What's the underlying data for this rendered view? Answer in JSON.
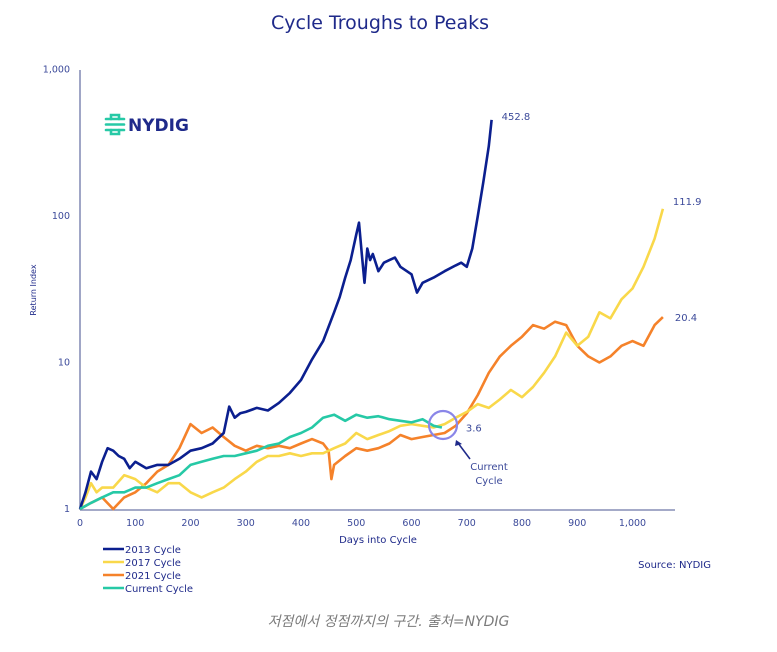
{
  "chart_data": {
    "type": "line",
    "title": "Cycle Troughs to Peaks",
    "xlabel": "Days into Cycle",
    "ylabel": "Return Index",
    "yscale": "log",
    "xlim": [
      0,
      1060
    ],
    "ylim": [
      1,
      1000
    ],
    "x_ticks": [
      0,
      100,
      200,
      300,
      400,
      500,
      600,
      700,
      800,
      900,
      1000
    ],
    "x_tick_labels": [
      "0",
      "100",
      "200",
      "300",
      "400",
      "500",
      "600",
      "700",
      "800",
      "900",
      "1,000"
    ],
    "y_ticks": [
      1,
      10,
      100,
      1000
    ],
    "y_tick_labels": [
      "1",
      "10",
      "100",
      "1,000"
    ],
    "legend_position": "bottom-left",
    "series": [
      {
        "name": "2013 Cycle",
        "color": "#0b1f8f",
        "end_label": "452.8",
        "x": [
          0,
          10,
          20,
          30,
          40,
          50,
          60,
          70,
          80,
          90,
          100,
          120,
          140,
          160,
          180,
          200,
          220,
          240,
          260,
          270,
          280,
          290,
          300,
          320,
          340,
          360,
          380,
          400,
          420,
          440,
          460,
          470,
          480,
          490,
          500,
          505,
          510,
          515,
          520,
          525,
          530,
          540,
          550,
          560,
          570,
          580,
          600,
          610,
          620,
          640,
          660,
          680,
          690,
          700,
          710,
          720,
          730,
          740,
          745
        ],
        "values": [
          1,
          1.3,
          1.8,
          1.6,
          2.1,
          2.6,
          2.5,
          2.3,
          2.2,
          1.9,
          2.1,
          1.9,
          2.0,
          2.0,
          2.2,
          2.5,
          2.6,
          2.8,
          3.3,
          5.0,
          4.2,
          4.5,
          4.6,
          4.9,
          4.7,
          5.3,
          6.2,
          7.6,
          10.5,
          14,
          22,
          28,
          38,
          50,
          75,
          90,
          55,
          35,
          60,
          50,
          55,
          42,
          48,
          50,
          52,
          45,
          40,
          30,
          35,
          38,
          42,
          46,
          48,
          45,
          60,
          100,
          170,
          300,
          452.8
        ]
      },
      {
        "name": "2017 Cycle",
        "color": "#f9d84a",
        "end_label": "111.9",
        "x": [
          0,
          10,
          20,
          30,
          40,
          60,
          80,
          100,
          120,
          140,
          160,
          180,
          200,
          220,
          240,
          260,
          280,
          300,
          320,
          340,
          360,
          380,
          400,
          420,
          440,
          460,
          480,
          500,
          520,
          540,
          560,
          580,
          600,
          620,
          640,
          660,
          680,
          700,
          720,
          740,
          760,
          780,
          800,
          820,
          840,
          860,
          880,
          900,
          920,
          940,
          960,
          980,
          1000,
          1020,
          1040,
          1055
        ],
        "values": [
          1,
          1.2,
          1.5,
          1.3,
          1.4,
          1.4,
          1.7,
          1.6,
          1.4,
          1.3,
          1.5,
          1.5,
          1.3,
          1.2,
          1.3,
          1.4,
          1.6,
          1.8,
          2.1,
          2.3,
          2.3,
          2.4,
          2.3,
          2.4,
          2.4,
          2.6,
          2.8,
          3.3,
          3.0,
          3.2,
          3.4,
          3.7,
          3.8,
          3.7,
          3.6,
          3.8,
          4.2,
          4.6,
          5.2,
          4.9,
          5.6,
          6.5,
          5.8,
          6.8,
          8.5,
          11,
          16,
          13,
          15,
          22,
          20,
          27,
          32,
          45,
          70,
          111.9
        ]
      },
      {
        "name": "2021 Cycle",
        "color": "#f5822a",
        "end_label": "20.4",
        "x": [
          0,
          20,
          40,
          60,
          80,
          100,
          120,
          140,
          160,
          180,
          200,
          220,
          240,
          260,
          280,
          300,
          320,
          340,
          360,
          380,
          400,
          420,
          440,
          450,
          455,
          460,
          480,
          500,
          520,
          540,
          560,
          580,
          600,
          620,
          640,
          660,
          680,
          700,
          720,
          740,
          760,
          780,
          800,
          820,
          840,
          860,
          880,
          900,
          920,
          940,
          960,
          980,
          1000,
          1020,
          1040,
          1055
        ],
        "values": [
          1,
          1.1,
          1.2,
          1.0,
          1.2,
          1.3,
          1.5,
          1.8,
          2.0,
          2.6,
          3.8,
          3.3,
          3.6,
          3.1,
          2.7,
          2.5,
          2.7,
          2.6,
          2.7,
          2.6,
          2.8,
          3.0,
          2.8,
          2.5,
          1.6,
          2.0,
          2.3,
          2.6,
          2.5,
          2.6,
          2.8,
          3.2,
          3.0,
          3.1,
          3.2,
          3.3,
          3.7,
          4.5,
          6.0,
          8.5,
          11,
          13,
          15,
          18,
          17,
          19,
          18,
          13,
          11,
          10,
          11,
          13,
          14,
          13,
          18,
          20.4
        ]
      },
      {
        "name": "Current Cycle",
        "color": "#26c9a6",
        "end_label": "3.6",
        "x": [
          0,
          20,
          40,
          60,
          80,
          100,
          120,
          140,
          160,
          180,
          200,
          220,
          240,
          260,
          280,
          300,
          320,
          340,
          360,
          380,
          400,
          420,
          440,
          460,
          480,
          500,
          520,
          540,
          560,
          580,
          600,
          620,
          640,
          655
        ],
        "values": [
          1,
          1.1,
          1.2,
          1.3,
          1.3,
          1.4,
          1.4,
          1.5,
          1.6,
          1.7,
          2.0,
          2.1,
          2.2,
          2.3,
          2.3,
          2.4,
          2.5,
          2.7,
          2.8,
          3.1,
          3.3,
          3.6,
          4.2,
          4.4,
          4.0,
          4.4,
          4.2,
          4.3,
          4.1,
          4.0,
          3.9,
          4.1,
          3.7,
          3.6
        ]
      }
    ],
    "annotations": [
      {
        "text_line1": "Current",
        "text_line2": "Cycle",
        "target_day": 640,
        "target_value": 3.6
      }
    ]
  },
  "logo": {
    "text": "NYDIG"
  },
  "source": "Source: NYDIG",
  "caption": "저점에서 정점까지의 구간. 출처=NYDIG"
}
